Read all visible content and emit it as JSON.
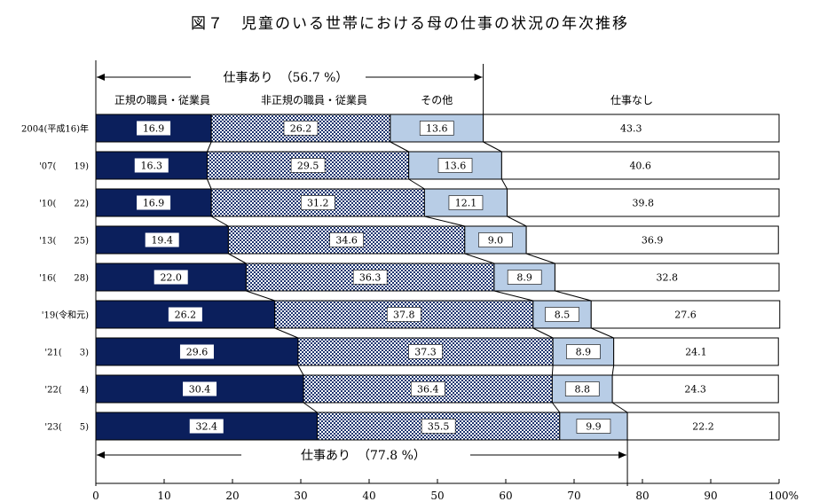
{
  "title": "図７　児童のいる世帯における母の仕事の状況の年次推移",
  "colors": {
    "regular": "#0b1f5c",
    "non_regular_checker_a": "#1f3670",
    "non_regular_checker_b": "#ffffff",
    "other": "#b8cde6",
    "no_work": "#ffffff",
    "outline": "#000000"
  },
  "annotations": {
    "top": {
      "label": "仕事あり",
      "value": "（56.7 %）",
      "end": 56.7
    },
    "bottom": {
      "label": "仕事あり",
      "value": "（77.8 %）",
      "end": 77.8
    }
  },
  "chart_data": {
    "type": "bar",
    "orientation": "horizontal",
    "stacked": true,
    "categories": [
      "2004(平成16)年",
      "'07(　　19)",
      "'10(　　22)",
      "'13(　　25)",
      "'16(　　28)",
      "'19(令和元)",
      "'21(　　3)",
      "'22(　　4)",
      "'23(　　5)"
    ],
    "series": [
      {
        "name": "正規の職員・従業員",
        "values": [
          16.9,
          16.3,
          16.9,
          19.4,
          22.0,
          26.2,
          29.6,
          30.4,
          32.4
        ]
      },
      {
        "name": "非正規の職員・従業員",
        "values": [
          26.2,
          29.5,
          31.2,
          34.6,
          36.3,
          37.8,
          37.3,
          36.4,
          35.5
        ]
      },
      {
        "name": "その他",
        "values": [
          13.6,
          13.6,
          12.1,
          9.0,
          8.9,
          8.5,
          8.9,
          8.8,
          9.9
        ]
      },
      {
        "name": "仕事なし",
        "values": [
          43.3,
          40.6,
          39.8,
          36.9,
          32.8,
          27.6,
          24.1,
          24.3,
          22.2
        ]
      }
    ],
    "value_labels": [
      [
        "16.9",
        "26.2",
        "13.6",
        "43.3"
      ],
      [
        "16.3",
        "29.5",
        "13.6",
        "40.6"
      ],
      [
        "16.9",
        "31.2",
        "12.1",
        "39.8"
      ],
      [
        "19.4",
        "34.6",
        "9.0",
        "36.9"
      ],
      [
        "22.0",
        "36.3",
        "8.9",
        "32.8"
      ],
      [
        "26.2",
        "37.8",
        "8.5",
        "27.6"
      ],
      [
        "29.6",
        "37.3",
        "8.9",
        "24.1"
      ],
      [
        "30.4",
        "36.4",
        "8.8",
        "24.3"
      ],
      [
        "32.4",
        "35.5",
        "9.9",
        "22.2"
      ]
    ],
    "x_ticks": [
      "0",
      "10",
      "20",
      "30",
      "40",
      "50",
      "60",
      "70",
      "80",
      "90",
      "100%"
    ],
    "xlim": [
      0,
      100
    ],
    "grid": false,
    "legend": "top"
  }
}
